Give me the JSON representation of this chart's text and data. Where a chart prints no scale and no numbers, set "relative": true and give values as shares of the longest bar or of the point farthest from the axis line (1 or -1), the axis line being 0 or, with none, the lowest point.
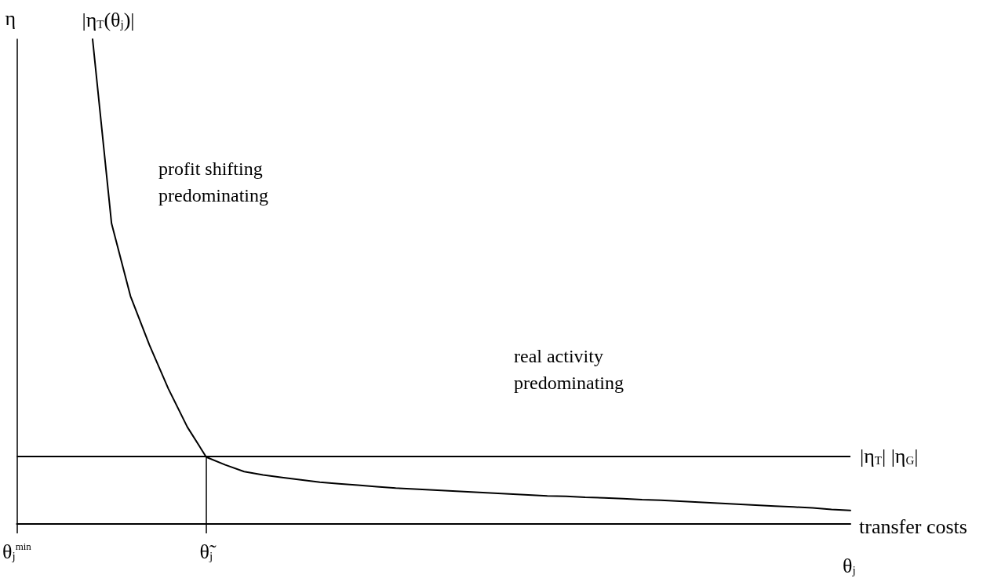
{
  "chart_data": {
    "type": "line",
    "relative": true,
    "ylabel": "η",
    "xlabel": "θ$_{j}$",
    "marker": "none",
    "grid": false,
    "legend": false,
    "categories": [
      "θ$_{j}$$^{min}$",
      null,
      null,
      null,
      null,
      null,
      null,
      null,
      null,
      null,
      "θ̃$_{j}$",
      null,
      null,
      null,
      null,
      null,
      null,
      null,
      null,
      null,
      null,
      null,
      null,
      null,
      null,
      null,
      null,
      null,
      null,
      null,
      null,
      null,
      null,
      null,
      null,
      null,
      null,
      null,
      null,
      null,
      null,
      null,
      null,
      null,
      null
    ],
    "series": [
      {
        "name": "|η$_{T}$(θ$_{j}$)|",
        "color": "#000000",
        "values": [
          null,
          null,
          null,
          null,
          1,
          0.62,
          0.47,
          0.369,
          0.279,
          0.2,
          0.138,
          0.122,
          0.108,
          0.101,
          0.096,
          0.091,
          0.086,
          0.083,
          0.08,
          0.077,
          0.074,
          0.072,
          0.07,
          0.068,
          0.066,
          0.064,
          0.062,
          0.06,
          0.058,
          0.057,
          0.055,
          0.054,
          0.052,
          0.05,
          0.049,
          0.047,
          0.045,
          0.043,
          0.041,
          0.039,
          0.037,
          0.035,
          0.033,
          0.03,
          0.028
        ]
      }
    ],
    "ref_lines": [
      {
        "axis": "y",
        "value": 0.138,
        "label": "|η$_{T}$| |η$_{G}$|"
      },
      {
        "axis": "x",
        "value": "θ̃$_{j}$"
      }
    ],
    "annotations": [
      "profit shifting\npredominating",
      "real activity\npredominating",
      "transfer costs"
    ]
  }
}
